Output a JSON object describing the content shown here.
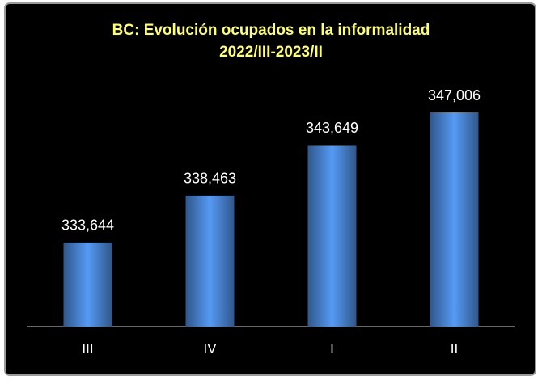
{
  "chart_data": {
    "type": "bar",
    "title": "BC: Evolución ocupados en la informalidad",
    "subtitle": "2022/III-2023/II",
    "categories": [
      "III",
      "IV",
      "I",
      "II"
    ],
    "values": [
      333644,
      338463,
      343649,
      347006
    ],
    "value_labels": [
      "333,644",
      "338,463",
      "343,649",
      "347,006"
    ],
    "color": "#4a86d4",
    "ylim": [
      325000,
      350000
    ]
  }
}
